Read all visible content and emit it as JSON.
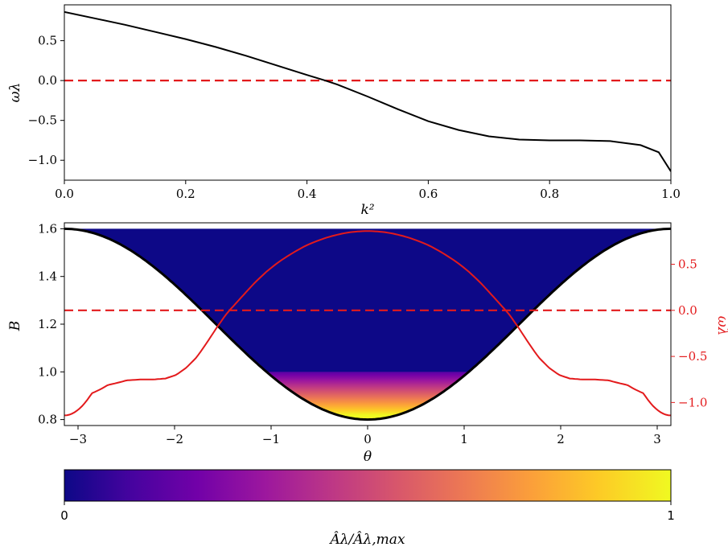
{
  "chart_data": [
    {
      "type": "line",
      "xlabel": "k²",
      "ylabel": "ωλ",
      "xlim": [
        0,
        1
      ],
      "ylim": [
        -1.25,
        0.95
      ],
      "xticks": [
        "0.0",
        "0.2",
        "0.4",
        "0.6",
        "0.8",
        "1.0"
      ],
      "yticks": [
        "0.5",
        "0.0",
        "−0.5",
        "−1.0"
      ],
      "series": [
        {
          "style": "solid black",
          "x": [
            0.0,
            0.05,
            0.1,
            0.15,
            0.2,
            0.25,
            0.3,
            0.35,
            0.4,
            0.43,
            0.45,
            0.5,
            0.55,
            0.6,
            0.65,
            0.7,
            0.75,
            0.8,
            0.85,
            0.9,
            0.95,
            0.98,
            1.0
          ],
          "y": [
            0.86,
            0.78,
            0.7,
            0.61,
            0.52,
            0.42,
            0.31,
            0.19,
            0.07,
            0.0,
            -0.05,
            -0.2,
            -0.36,
            -0.51,
            -0.62,
            -0.7,
            -0.74,
            -0.75,
            -0.75,
            -0.76,
            -0.81,
            -0.9,
            -1.14
          ]
        },
        {
          "style": "dashed red",
          "x": [
            0,
            1
          ],
          "y": [
            0,
            0
          ]
        }
      ]
    },
    {
      "type": "heatmap",
      "xlabel": "θ",
      "ylabel": "B",
      "right_ylabel": "ωλ",
      "xlim": [
        -3.1416,
        3.1416
      ],
      "ylim_left": [
        0.775,
        1.625
      ],
      "ylim_right": [
        -1.25,
        0.95
      ],
      "xticks": [
        "−3",
        "−2",
        "−1",
        "0",
        "1",
        "2",
        "3"
      ],
      "yticks_left": [
        "1.6",
        "1.4",
        "1.2",
        "1.0",
        "0.8"
      ],
      "yticks_right": [
        "0.5",
        "0.0",
        "−0.5",
        "−1.0"
      ],
      "B_curve": {
        "formula": "B = 1.2 - 0.4 cos(theta)",
        "min": 0.8,
        "max": 1.6
      },
      "fill": {
        "description": "amplitude colormap inside well",
        "low_region_B": [
          0.8,
          1.0
        ]
      },
      "omega_curve": {
        "color": "red",
        "peak": 0.86,
        "ends": -1.14,
        "plateau": -0.75
      },
      "zero_line": {
        "y_right": 0.0,
        "color": "red",
        "style": "dashed"
      }
    },
    {
      "type": "colorbar",
      "colormap": "plasma",
      "min_label": "0",
      "max_label": "1",
      "label": "Âλ/Âλ,max"
    }
  ],
  "colors": {
    "curve": "#000000",
    "dashed": "#e31a1c",
    "red": "#e31a1c",
    "plasma": [
      "#0d0887",
      "#46039f",
      "#7201a8",
      "#9c179e",
      "#bd3786",
      "#d8576b",
      "#ed7953",
      "#fb9f3a",
      "#fdca26",
      "#f0f921"
    ]
  }
}
